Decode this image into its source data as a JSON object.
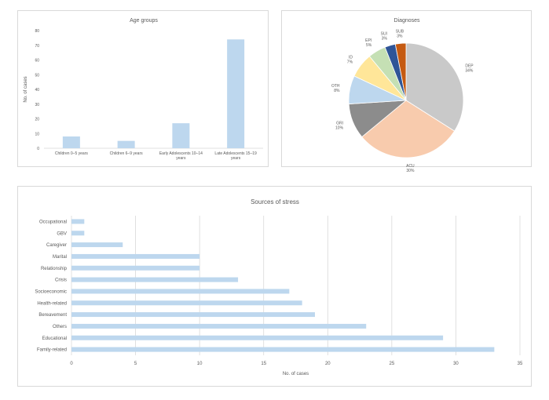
{
  "chart_data": [
    {
      "type": "bar",
      "title": "Age groups",
      "ylabel": "No. of cases",
      "xlabel": "",
      "ylim": [
        0,
        80
      ],
      "yticks": [
        "0",
        "10",
        "20",
        "30",
        "40",
        "50",
        "60",
        "70",
        "80"
      ],
      "categories": [
        [
          "Children 0–5 years"
        ],
        [
          "Children 6–9 years"
        ],
        [
          "Early Adolescents 10–14",
          "years"
        ],
        [
          "Late Adolescents 15–19",
          "years"
        ]
      ],
      "values": [
        8,
        5,
        17,
        74
      ],
      "grid": false,
      "color": "#bdd7ee"
    },
    {
      "type": "pie",
      "title": "Diagnoses",
      "slices": [
        {
          "label": "DEP",
          "pct": "34%",
          "value": 34,
          "color": "#c9c9c9"
        },
        {
          "label": "ACU",
          "pct": "30%",
          "value": 30,
          "color": "#f8cbad"
        },
        {
          "label": "GRI",
          "pct": "10%",
          "value": 10,
          "color": "#8c8c8c"
        },
        {
          "label": "OTH",
          "pct": "8%",
          "value": 8,
          "color": "#bdd7ee"
        },
        {
          "label": "ID",
          "pct": "7%",
          "value": 7,
          "color": "#ffe699"
        },
        {
          "label": "EPI",
          "pct": "5%",
          "value": 5,
          "color": "#c5e0b4"
        },
        {
          "label": "SUI",
          "pct": "3%",
          "value": 3,
          "color": "#2f5597"
        },
        {
          "label": "SUB",
          "pct": "3%",
          "value": 3,
          "color": "#c55a11"
        }
      ]
    },
    {
      "type": "bar",
      "orientation": "horizontal",
      "title": "Sources of stress",
      "xlabel": "No. of cases",
      "ylabel": "",
      "xlim": [
        0,
        35
      ],
      "xticks": [
        "0",
        "5",
        "10",
        "15",
        "20",
        "25",
        "30",
        "35"
      ],
      "categories": [
        "Occupational",
        "GBV",
        "Caregiver",
        "Marital",
        "Relationship",
        "Crisis",
        "Socioeconomic",
        "Health-related",
        "Bereavement",
        "Others",
        "Educational",
        "Family-related"
      ],
      "values": [
        1,
        1,
        4,
        10,
        10,
        13,
        17,
        18,
        19,
        23,
        29,
        33
      ],
      "grid": true,
      "color": "#bdd7ee"
    }
  ]
}
